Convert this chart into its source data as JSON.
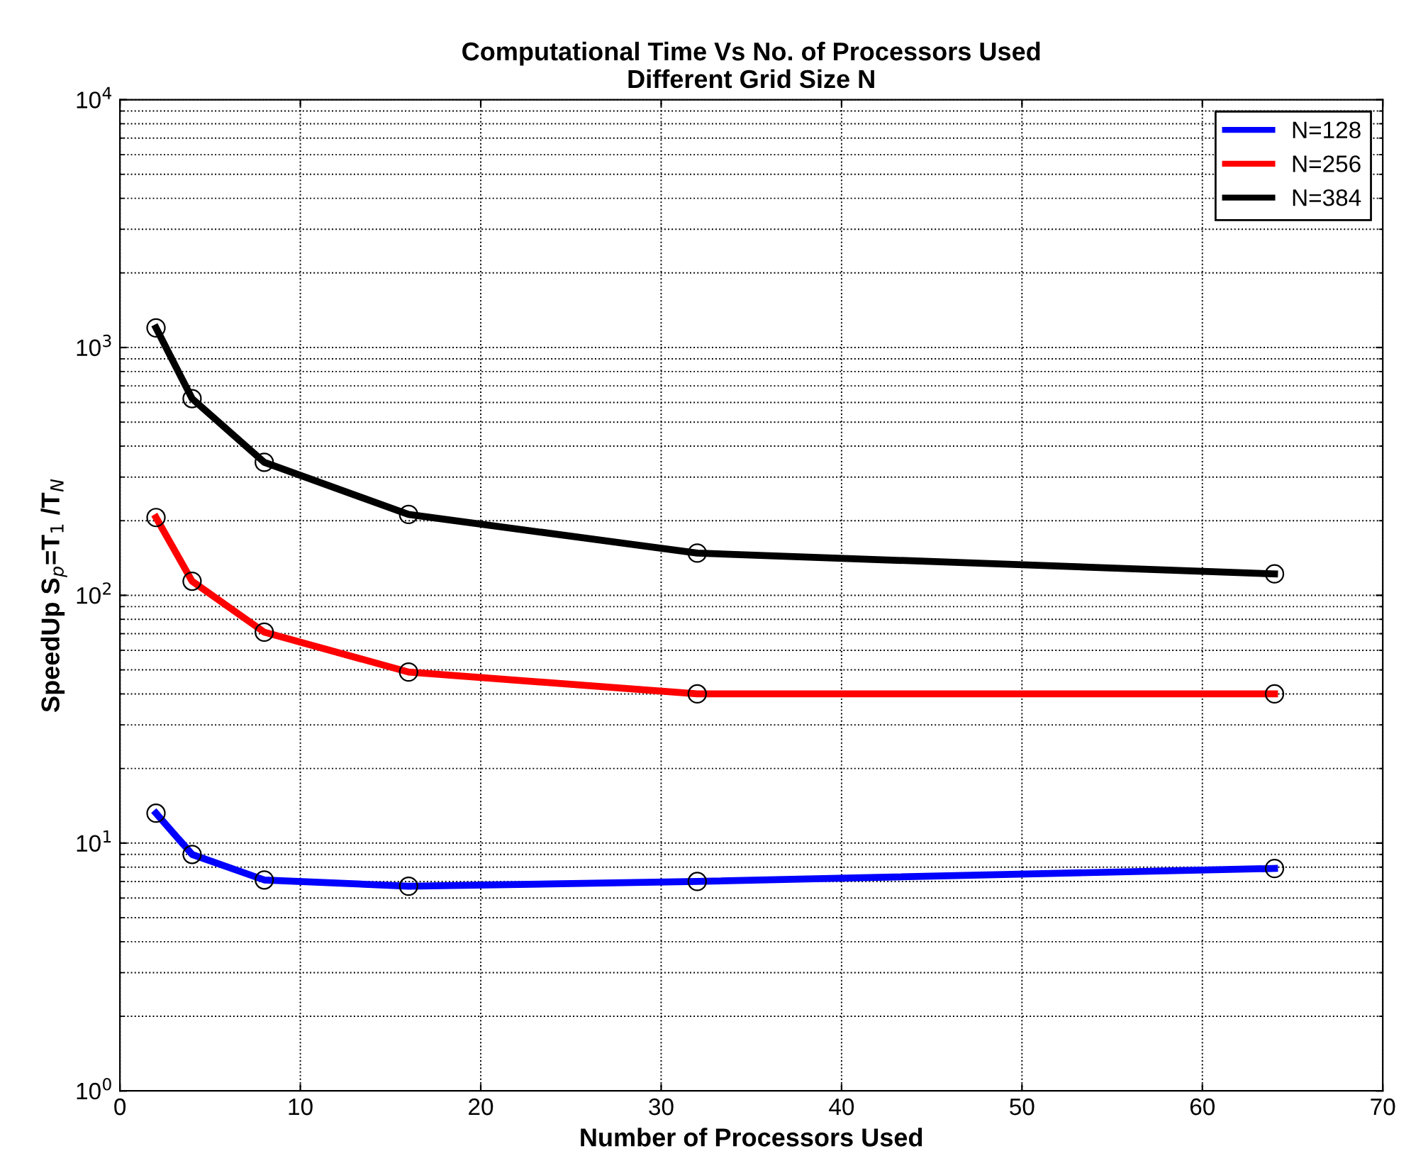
{
  "chart_data": {
    "type": "line",
    "title": "Computational Time Vs No. of Processors Used\nDifferent Grid Size N",
    "xlabel": "Number of Processors Used",
    "ylabel": "SpeedUp S$_{p}$=T$_{1}$ /T$_{N}$",
    "x": [
      2,
      4,
      8,
      16,
      32,
      64
    ],
    "series": [
      {
        "name": "N=128",
        "color": "#0000ff",
        "values": [
          13.2,
          9.0,
          7.1,
          6.7,
          7.0,
          7.9
        ]
      },
      {
        "name": "N=256",
        "color": "#ff0000",
        "values": [
          206,
          114,
          71,
          49,
          40,
          40
        ]
      },
      {
        "name": "N=384",
        "color": "#000000",
        "values": [
          1200,
          622,
          344,
          212,
          148,
          122
        ]
      }
    ],
    "log": "y",
    "xlim": [
      0,
      70
    ],
    "xticks": [
      0,
      10,
      20,
      30,
      40,
      50,
      60,
      70
    ],
    "ylim": [
      1,
      10000
    ],
    "yticks": [
      {
        "value": 1,
        "label": "10$^{0}$"
      },
      {
        "value": 10,
        "label": "10$^{1}$"
      },
      {
        "value": 100,
        "label": "10$^{2}$"
      },
      {
        "value": 1000,
        "label": "10$^{3}$"
      },
      {
        "value": 10000,
        "label": "10$^{4}$"
      }
    ],
    "grid": true,
    "legend": "top right",
    "marker": "circle",
    "line_style": "solid"
  }
}
